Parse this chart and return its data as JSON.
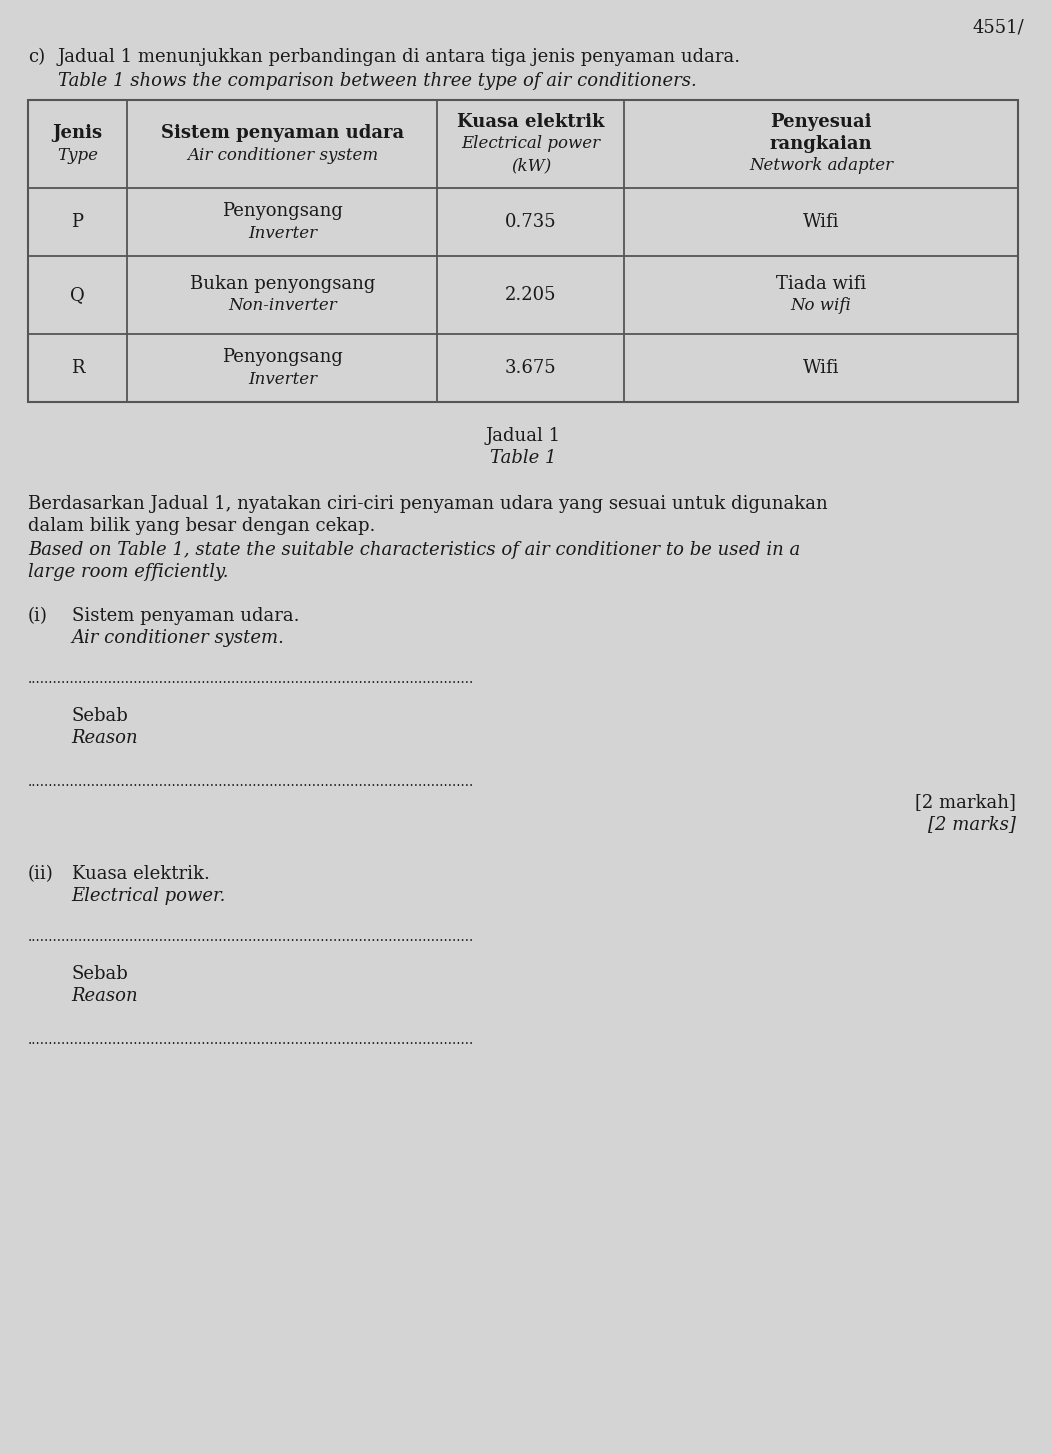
{
  "page_number": "4551/",
  "intro_prefix": "c)",
  "intro_malay": "Jadual 1 menunjukkan perbandingan di antara tiga jenis penyaman udara.",
  "intro_english": "Table 1 shows the comparison between three type of air conditioners.",
  "table_caption_malay": "Jadual 1",
  "table_caption_english": "Table 1",
  "col_headers": [
    {
      "malay": "Jenis",
      "english": "Type"
    },
    {
      "malay": "Sistem penyaman udara",
      "english": "Air conditioner system"
    },
    {
      "malay": "Kuasa elektrik",
      "english": "Electrical power",
      "unit": "(kW)"
    },
    {
      "malay": "Penyesuai\nrangkaian",
      "english": "Network adapter"
    }
  ],
  "table_rows": [
    [
      "P",
      "Penyongsang",
      "Inverter",
      "0.735",
      "Wifi",
      ""
    ],
    [
      "Q",
      "Bukan penyongsang",
      "Non-inverter",
      "2.205",
      "Tiada wifi",
      "No wifi"
    ],
    [
      "R",
      "Penyongsang",
      "Inverter",
      "3.675",
      "Wifi",
      ""
    ]
  ],
  "question_malay_1": "Berdasarkan Jadual 1, nyatakan ciri-ciri penyaman udara yang sesuai untuk digunakan",
  "question_malay_2": "dalam bilik yang besar dengan cekap.",
  "question_english_1": "Based on Table 1, state the suitable characteristics of air conditioner to be used in a",
  "question_english_2": "large room efficiently.",
  "sub_i_malay": "Sistem penyaman udara.",
  "sub_i_english": "Air conditioner system.",
  "sub_ii_malay": "Kuasa elektrik.",
  "sub_ii_english": "Electrical power.",
  "sebab_malay": "Sebab",
  "sebab_english": "Reason",
  "marks_malay": "[2 markah]",
  "marks_english": "[2 marks]",
  "bg_color": "#d4d4d4",
  "text_color": "#1a1a1a",
  "table_line_color": "#555555",
  "dot_char": ".",
  "dot_count": 105
}
